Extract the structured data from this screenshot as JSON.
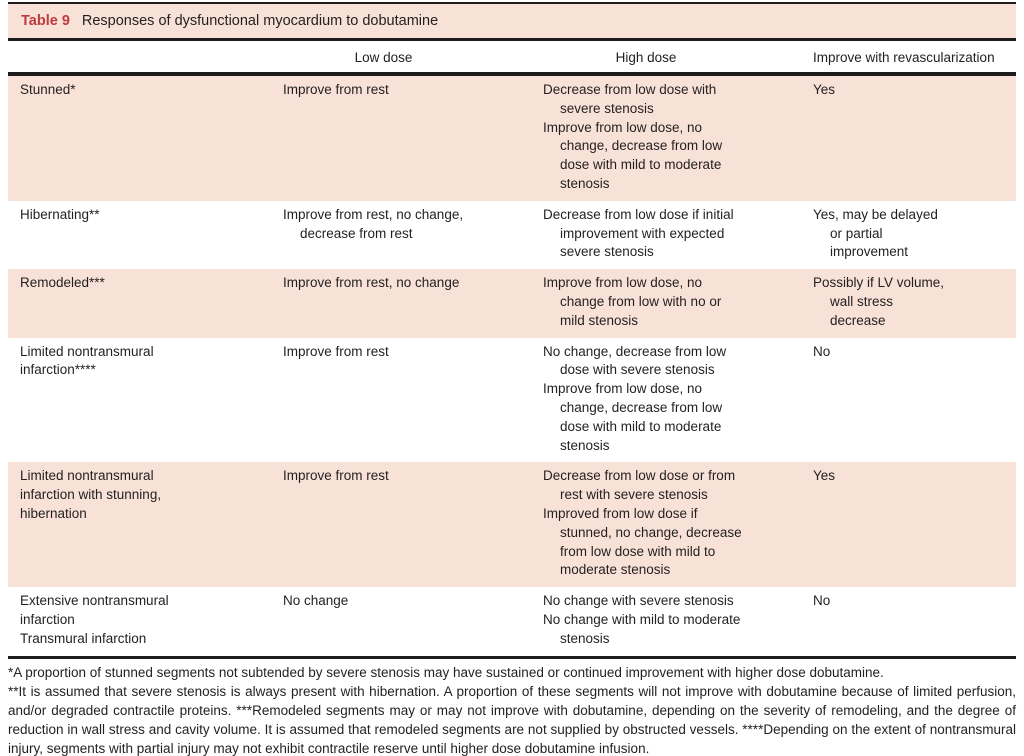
{
  "title": {
    "label": "Table 9",
    "caption": "Responses of dysfunctional myocardium to dobutamine"
  },
  "colors": {
    "shaded_row": "#f8e2d7",
    "table_label_red": "#c0393d",
    "text": "#231f20",
    "rule": "#1c1c1c"
  },
  "table": {
    "columns": [
      "",
      "Low dose",
      "High dose",
      "Improve with revascularization"
    ],
    "rows": [
      {
        "shaded": true,
        "condition": [
          "Stunned*"
        ],
        "low_dose": [
          "Improve from rest"
        ],
        "high_dose": [
          "Decrease from low dose with severe stenosis",
          "Improve from low dose, no change, decrease from low dose with mild to moderate stenosis"
        ],
        "revascularization": [
          "Yes"
        ]
      },
      {
        "shaded": false,
        "condition": [
          "Hibernating**"
        ],
        "low_dose": [
          "Improve from rest, no change, decrease from rest"
        ],
        "high_dose": [
          "Decrease from low dose if initial improvement with expected severe stenosis"
        ],
        "revascularization": [
          "Yes, may be delayed or partial improvement"
        ]
      },
      {
        "shaded": true,
        "condition": [
          "Remodeled***"
        ],
        "low_dose": [
          "Improve from rest, no change"
        ],
        "high_dose": [
          "Improve from low dose, no change from low with no or mild stenosis"
        ],
        "revascularization": [
          "Possibly if LV volume, wall stress decrease"
        ]
      },
      {
        "shaded": false,
        "condition": [
          "Limited nontransmural infarction****"
        ],
        "low_dose": [
          "Improve from rest"
        ],
        "high_dose": [
          "No change, decrease from low dose with severe stenosis",
          "Improve from low dose, no change, decrease from low dose with mild to moderate stenosis"
        ],
        "revascularization": [
          "No"
        ]
      },
      {
        "shaded": true,
        "condition": [
          "Limited nontransmural infarction with stunning, hibernation"
        ],
        "low_dose": [
          "Improve from rest"
        ],
        "high_dose": [
          "Decrease from low dose or from rest with severe stenosis",
          "Improved from low dose if stunned, no change, decrease from low dose with mild to moderate stenosis"
        ],
        "revascularization": [
          "Yes"
        ]
      },
      {
        "shaded": false,
        "condition": [
          "Extensive nontransmural infarction",
          "Transmural infarction"
        ],
        "low_dose": [
          "No change"
        ],
        "high_dose": [
          "No change with severe stenosis",
          "No change with mild to moderate stenosis"
        ],
        "revascularization": [
          "No"
        ]
      }
    ]
  },
  "footnotes": [
    "*A proportion of stunned segments not subtended by severe stenosis may have sustained or continued improvement with higher dose dobutamine.",
    "**It is assumed that severe stenosis is always present with hibernation. A proportion of these segments will not improve with dobutamine because of limited perfusion, and/or degraded contractile proteins. ***Remodeled segments may or may not improve with dobutamine, depending on the severity of remodeling, and the degree of reduction in wall stress and cavity volume. It is assumed that remodeled segments are not supplied by obstructed vessels. ****Depending on the extent of nontransmural injury, segments with partial injury may not exhibit contractile reserve until higher dose dobutamine infusion."
  ]
}
